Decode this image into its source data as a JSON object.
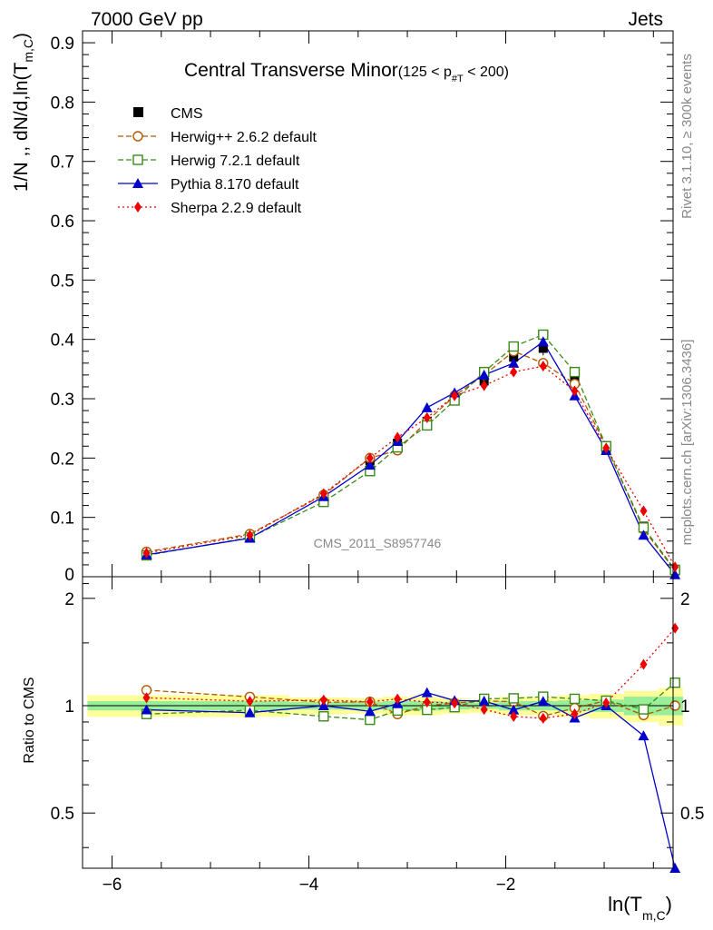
{
  "header": {
    "left": "7000 GeV pp",
    "right": "Jets"
  },
  "side_labels": {
    "rivet": "Rivet 3.1.10, ≥ 300k events",
    "mcplots": "mcplots.cern.ch [arXiv:1306.3436]"
  },
  "watermark": "CMS_2011_S8957746",
  "chart_data": {
    "type": "line",
    "title": "Central Transverse Minor",
    "title_cut": {
      "pre": "(125 < p",
      "sub": "#T",
      "post": "  < 200)"
    },
    "xlabel": {
      "main": "ln(T",
      "sub": "m,C",
      "close": ")"
    },
    "ylabel": {
      "main": "1/N ,, dN/d,ln(T",
      "sub": "m,C",
      "close": ")"
    },
    "ratio_ylabel": "Ratio to CMS",
    "xlim": [
      -6.3,
      -0.3
    ],
    "ylim": [
      0,
      0.92
    ],
    "ratio_ylim": [
      0.35,
      2.3
    ],
    "x_ticks": [
      -6,
      -4,
      -2
    ],
    "x_tick_labels": [
      "−6",
      "−4",
      "−2"
    ],
    "y_ticks": [
      0.1,
      0.2,
      0.3,
      0.4,
      0.5,
      0.6,
      0.7,
      0.8,
      0.9
    ],
    "y_tick_labels": [
      "0.1",
      "0.2",
      "0.3",
      "0.4",
      "0.5",
      "0.6",
      "0.7",
      "0.8",
      "0.9"
    ],
    "y_zero_label": "0",
    "ratio_ticks": [
      0.5,
      1,
      2
    ],
    "ratio_tick_labels": [
      "0.5",
      "1",
      "2"
    ],
    "x": [
      -5.65,
      -4.6,
      -3.85,
      -3.38,
      -3.1,
      -2.8,
      -2.52,
      -2.22,
      -1.92,
      -1.62,
      -1.3,
      -0.98,
      -0.6,
      -0.28
    ],
    "bin_edges": [
      -6.25,
      -5.1,
      -4.2,
      -3.6,
      -3.25,
      -2.95,
      -2.65,
      -2.37,
      -2.07,
      -1.77,
      -1.47,
      -1.15,
      -0.8,
      -0.45,
      -0.2
    ],
    "reference": {
      "name": "CMS",
      "values": [
        0.038,
        0.068,
        0.135,
        0.195,
        0.225,
        0.262,
        0.3,
        0.33,
        0.37,
        0.385,
        0.33,
        0.213,
        0.085,
        0.01
      ],
      "errors": [
        0.003,
        0.004,
        0.006,
        0.008,
        0.009,
        0.01,
        0.01,
        0.01,
        0.011,
        0.012,
        0.01,
        0.007,
        0.004,
        0.002
      ],
      "band_inner": [
        0.03,
        0.03,
        0.025,
        0.025,
        0.03,
        0.03,
        0.025,
        0.02,
        0.03,
        0.03,
        0.035,
        0.04,
        0.06,
        0.06
      ],
      "band_outer": [
        0.07,
        0.07,
        0.055,
        0.05,
        0.06,
        0.06,
        0.05,
        0.045,
        0.06,
        0.06,
        0.07,
        0.08,
        0.1,
        0.12
      ]
    },
    "series": [
      {
        "name": "Herwig++ 2.6.2 default",
        "color": "#b05a00",
        "marker": "open-circle",
        "dash": "6,3",
        "values": [
          0.042,
          0.072,
          0.138,
          0.2,
          0.213,
          0.262,
          0.305,
          0.34,
          0.38,
          0.36,
          0.325,
          0.22,
          0.08,
          0.01
        ]
      },
      {
        "name": "Herwig 7.2.1 default",
        "color": "#3a8a1a",
        "marker": "open-square",
        "dash": "6,3",
        "values": [
          0.036,
          0.066,
          0.126,
          0.178,
          0.218,
          0.255,
          0.297,
          0.345,
          0.388,
          0.408,
          0.345,
          0.22,
          0.083,
          0.0116
        ]
      },
      {
        "name": "Pythia 8.170 default",
        "color": "#0000cc",
        "marker": "triangle",
        "dash": "",
        "values": [
          0.037,
          0.065,
          0.135,
          0.188,
          0.228,
          0.285,
          0.31,
          0.34,
          0.36,
          0.396,
          0.305,
          0.213,
          0.07,
          0.0035
        ]
      },
      {
        "name": "Sherpa 2.2.9 default",
        "color": "#ee0000",
        "marker": "diamond",
        "dash": "2,3",
        "values": [
          0.04,
          0.07,
          0.14,
          0.2,
          0.235,
          0.268,
          0.305,
          0.322,
          0.345,
          0.355,
          0.313,
          0.217,
          0.111,
          0.0165
        ]
      }
    ]
  }
}
